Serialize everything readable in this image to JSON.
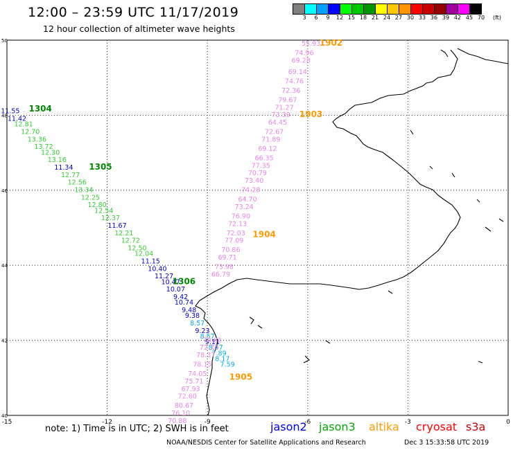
{
  "header": {
    "title": "12:00 – 23:59 UTC 11/17/2019",
    "subtitle": "12 hour collection of altimeter wave heights"
  },
  "colorbar": {
    "unit_label": "(ft)",
    "colors": [
      "#808080",
      "#00ffff",
      "#00a0ff",
      "#0000ff",
      "#00ff00",
      "#00c800",
      "#009600",
      "#ffff00",
      "#ffc800",
      "#ff9600",
      "#ff0000",
      "#c80000",
      "#960000",
      "#a000a0",
      "#ff00ff",
      "#000000"
    ],
    "labels": [
      "3",
      "6",
      "9",
      "12",
      "15",
      "18",
      "21",
      "24",
      "27",
      "30",
      "33",
      "36",
      "39",
      "42",
      "45",
      "70"
    ]
  },
  "axes": {
    "x_ticks": [
      "-15",
      "-12",
      "-9",
      "-6",
      "-3",
      "0"
    ],
    "y_ticks": [
      "50",
      "48",
      "46",
      "44",
      "42",
      "40"
    ]
  },
  "tracks": [
    {
      "satellite": "altika",
      "time_label": "1902",
      "points": [
        {
          "lon": -5.9,
          "lat": 49.85,
          "value": "55.93",
          "sat": "s3a"
        },
        {
          "lon": -6.1,
          "lat": 49.6,
          "value": "74.96",
          "sat": "s3a"
        },
        {
          "lon": -6.2,
          "lat": 49.4,
          "value": "69.28",
          "sat": "s3a"
        },
        {
          "lon": -6.3,
          "lat": 49.1,
          "value": "69.14",
          "sat": "s3a"
        },
        {
          "lon": -6.4,
          "lat": 48.85,
          "value": "74.76",
          "sat": "s3a"
        },
        {
          "lon": -6.5,
          "lat": 48.6,
          "value": "72.36",
          "sat": "s3a"
        },
        {
          "lon": -6.6,
          "lat": 48.35,
          "value": "79.67",
          "sat": "s3a"
        },
        {
          "lon": -6.7,
          "lat": 48.15,
          "value": "71.27",
          "sat": "s3a"
        },
        {
          "lon": -6.8,
          "lat": 47.95,
          "value": "73.39",
          "sat": "s3a"
        }
      ]
    },
    {
      "satellite": "altika",
      "time_label": "1903",
      "points": [
        {
          "lon": -6.9,
          "lat": 47.75,
          "value": "64.45",
          "sat": "s3a"
        },
        {
          "lon": -7.0,
          "lat": 47.5,
          "value": "72.67",
          "sat": "s3a"
        },
        {
          "lon": -7.1,
          "lat": 47.3,
          "value": "71.89",
          "sat": "s3a"
        },
        {
          "lon": -7.2,
          "lat": 47.05,
          "value": "69.12",
          "sat": "s3a"
        },
        {
          "lon": -7.3,
          "lat": 46.8,
          "value": "66.35",
          "sat": "s3a"
        },
        {
          "lon": -7.4,
          "lat": 46.6,
          "value": "77.35",
          "sat": "s3a"
        },
        {
          "lon": -7.5,
          "lat": 46.4,
          "value": "70.79",
          "sat": "s3a"
        },
        {
          "lon": -7.6,
          "lat": 46.2,
          "value": "73.40",
          "sat": "s3a"
        },
        {
          "lon": -7.7,
          "lat": 45.95,
          "value": "74.28",
          "sat": "s3a"
        },
        {
          "lon": -7.8,
          "lat": 45.7,
          "value": "64.70",
          "sat": "s3a"
        },
        {
          "lon": -7.9,
          "lat": 45.5,
          "value": "73.24",
          "sat": "s3a"
        },
        {
          "lon": -8.0,
          "lat": 45.25,
          "value": "76.90",
          "sat": "s3a"
        },
        {
          "lon": -8.1,
          "lat": 45.05,
          "value": "72.13",
          "sat": "s3a"
        },
        {
          "lon": -8.15,
          "lat": 44.8,
          "value": "72.03",
          "sat": "s3a"
        }
      ]
    },
    {
      "satellite": "altika",
      "time_label": "1904",
      "points": [
        {
          "lon": -8.2,
          "lat": 44.6,
          "value": "77.09",
          "sat": "s3a"
        },
        {
          "lon": -8.3,
          "lat": 44.35,
          "value": "70.86",
          "sat": "s3a"
        },
        {
          "lon": -8.4,
          "lat": 44.15,
          "value": "69.71",
          "sat": "s3a"
        },
        {
          "lon": -8.5,
          "lat": 43.9,
          "value": "73.98",
          "sat": "s3a"
        },
        {
          "lon": -8.6,
          "lat": 43.7,
          "value": "66.79",
          "sat": "s3a"
        }
      ]
    },
    {
      "satellite": "jason3",
      "time_label": "1304",
      "points": [
        {
          "lon": -14.9,
          "lat": 48.05,
          "value": "11.55",
          "sat": "jason2"
        },
        {
          "lon": -14.7,
          "lat": 47.85,
          "value": "11.42",
          "sat": "jason2"
        },
        {
          "lon": -14.5,
          "lat": 47.7,
          "value": "12.81",
          "sat": "jason3"
        },
        {
          "lon": -14.3,
          "lat": 47.5,
          "value": "12.70",
          "sat": "jason3"
        },
        {
          "lon": -14.1,
          "lat": 47.3,
          "value": "13.36",
          "sat": "jason3"
        },
        {
          "lon": -13.9,
          "lat": 47.1,
          "value": "13.72",
          "sat": "jason3"
        },
        {
          "lon": -13.7,
          "lat": 46.95,
          "value": "12.30",
          "sat": "jason3"
        },
        {
          "lon": -13.5,
          "lat": 46.75,
          "value": "13.16",
          "sat": "jason3"
        },
        {
          "lon": -13.3,
          "lat": 46.55,
          "value": "11.34",
          "sat": "jason2"
        }
      ]
    },
    {
      "satellite": "jason3",
      "time_label": "1305",
      "points": [
        {
          "lon": -13.1,
          "lat": 46.35,
          "value": "12.77",
          "sat": "jason3"
        },
        {
          "lon": -12.9,
          "lat": 46.15,
          "value": "12.56",
          "sat": "jason3"
        },
        {
          "lon": -12.7,
          "lat": 45.95,
          "value": "13.34",
          "sat": "jason3"
        },
        {
          "lon": -12.5,
          "lat": 45.75,
          "value": "12.25",
          "sat": "jason3"
        },
        {
          "lon": -12.3,
          "lat": 45.55,
          "value": "12.80",
          "sat": "jason3"
        },
        {
          "lon": -12.1,
          "lat": 45.4,
          "value": "12.54",
          "sat": "jason3"
        },
        {
          "lon": -11.9,
          "lat": 45.2,
          "value": "12.37",
          "sat": "jason3"
        },
        {
          "lon": -11.7,
          "lat": 45.0,
          "value": "11.67",
          "sat": "jason2"
        },
        {
          "lon": -11.5,
          "lat": 44.8,
          "value": "12.21",
          "sat": "jason3"
        },
        {
          "lon": -11.3,
          "lat": 44.6,
          "value": "12.72",
          "sat": "jason3"
        },
        {
          "lon": -11.1,
          "lat": 44.4,
          "value": "12.50",
          "sat": "jason3"
        },
        {
          "lon": -10.9,
          "lat": 44.25,
          "value": "12.04",
          "sat": "jason3"
        },
        {
          "lon": -10.7,
          "lat": 44.05,
          "value": "11.15",
          "sat": "jason2"
        },
        {
          "lon": -10.5,
          "lat": 43.85,
          "value": "10.40",
          "sat": "jason2"
        },
        {
          "lon": -10.3,
          "lat": 43.65,
          "value": "11.27",
          "sat": "jason2"
        }
      ]
    },
    {
      "satellite": "jason3",
      "time_label": "1306",
      "points": [
        {
          "lon": -10.1,
          "lat": 43.5,
          "value": "10.47",
          "sat": "jason2"
        },
        {
          "lon": -9.95,
          "lat": 43.3,
          "value": "10.07",
          "sat": "jason2"
        },
        {
          "lon": -9.8,
          "lat": 43.1,
          "value": "9.42",
          "sat": "jason2"
        },
        {
          "lon": -9.7,
          "lat": 42.95,
          "value": "10.74",
          "sat": "jason2"
        },
        {
          "lon": -9.55,
          "lat": 42.75,
          "value": "9.48",
          "sat": "jason2"
        },
        {
          "lon": -9.45,
          "lat": 42.6,
          "value": "9.38",
          "sat": "jason2"
        },
        {
          "lon": -9.3,
          "lat": 42.4,
          "value": "8.57",
          "sat": "altika_cyan"
        },
        {
          "lon": -9.15,
          "lat": 42.2,
          "value": "9.23",
          "sat": "jason2"
        },
        {
          "lon": -9.0,
          "lat": 42.05,
          "value": "8.57",
          "sat": "altika_cyan"
        },
        {
          "lon": -8.85,
          "lat": 41.9,
          "value": "9.11",
          "sat": "jason2"
        },
        {
          "lon": -8.75,
          "lat": 41.75,
          "value": "8.47",
          "sat": "altika_cyan"
        },
        {
          "lon": -8.65,
          "lat": 41.6,
          "value": "7.89",
          "sat": "altika_cyan"
        },
        {
          "lon": -8.55,
          "lat": 41.45,
          "value": "8.17",
          "sat": "altika_cyan"
        },
        {
          "lon": -8.4,
          "lat": 41.3,
          "value": "7.59",
          "sat": "altika_cyan"
        }
      ]
    },
    {
      "satellite": "altika",
      "time_label": "1905",
      "points": [
        {
          "lon": -8.85,
          "lat": 41.95,
          "value": "70.81",
          "sat": "s3a"
        },
        {
          "lon": -8.95,
          "lat": 41.75,
          "value": "72.70",
          "sat": "s3a"
        },
        {
          "lon": -9.05,
          "lat": 41.55,
          "value": "78.37",
          "sat": "s3a"
        },
        {
          "lon": -9.15,
          "lat": 41.3,
          "value": "78.15",
          "sat": "s3a"
        },
        {
          "lon": -9.3,
          "lat": 41.05,
          "value": "74.05",
          "sat": "s3a"
        },
        {
          "lon": -9.4,
          "lat": 40.85,
          "value": "75.71",
          "sat": "s3a"
        },
        {
          "lon": -9.5,
          "lat": 40.65,
          "value": "67.93",
          "sat": "s3a"
        },
        {
          "lon": -9.6,
          "lat": 40.45,
          "value": "72.60",
          "sat": "s3a"
        },
        {
          "lon": -9.7,
          "lat": 40.2,
          "value": "80.67",
          "sat": "s3a"
        },
        {
          "lon": -9.8,
          "lat": 40.0,
          "value": "76.10",
          "sat": "s3a"
        },
        {
          "lon": -9.9,
          "lat": 39.8,
          "value": "70.88",
          "sat": "s3a"
        }
      ]
    }
  ],
  "track_colors": {
    "s3a": "#e884e8",
    "jason2": "#0000cc",
    "jason3": "#33cc33",
    "altika_cyan": "#00aaee",
    "label_jason3": "#008800",
    "label_altika": "#ff9900"
  },
  "footer": {
    "note": "note: 1) Time is in UTC; 2) SWH is in feet",
    "legend": [
      {
        "label": "jason2",
        "color": "#0000ff"
      },
      {
        "label": "jason3",
        "color": "#00aa00"
      },
      {
        "label": "altika",
        "color": "#ff9900"
      },
      {
        "label": "cryosat",
        "color": "#ff0000"
      },
      {
        "label": "s3a",
        "color": "#cc0000"
      }
    ],
    "credit": "NOAA/NESDIS Center for Satellite Applications and Research",
    "stamp": "Dec  3 15:33:58 UTC 2019"
  }
}
